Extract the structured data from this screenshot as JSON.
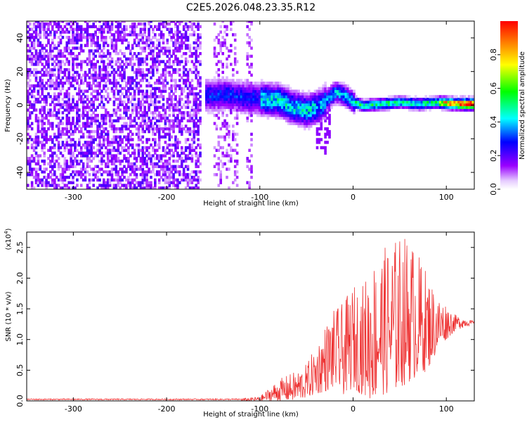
{
  "figure_title": "C2E5.2026.048.23.35.R12",
  "chart_data": [
    {
      "type": "heatmap",
      "title": "C2E5.2026.048.23.35.R12",
      "xlabel": "Height of straight line (km)",
      "ylabel": "Frequency (Hz)",
      "xlim": [
        -350,
        130
      ],
      "ylim": [
        -50,
        50
      ],
      "xticks": [
        -300,
        -200,
        -100,
        0,
        100
      ],
      "xtick_labels": [
        "-300",
        "-200",
        "-100",
        "0",
        "100"
      ],
      "yticks": [
        -40,
        -20,
        0,
        20,
        40
      ],
      "ytick_labels": [
        "-40",
        "-20",
        "0",
        "20",
        "40"
      ],
      "colorbar": {
        "label": "Normalized spectral amplitude",
        "range": [
          0,
          1
        ],
        "ticks": [
          0.0,
          0.2,
          0.4,
          0.6,
          0.8
        ],
        "tick_labels": [
          "0.0",
          "0.2",
          "0.4",
          "0.6",
          "0.8"
        ],
        "colormap": [
          "#ffffff",
          "#9900ff",
          "#0000ff",
          "#00ffff",
          "#00ff00",
          "#ffff00",
          "#ff8000",
          "#ff0000"
        ]
      },
      "ridge": {
        "description_of_values": "frequency ridge center (Hz) vs height (km)",
        "x": [
          -155,
          -140,
          -120,
          -100,
          -80,
          -65,
          -50,
          -35,
          -25,
          -18,
          -10,
          0,
          10,
          30,
          50,
          70,
          90,
          110,
          130
        ],
        "y": [
          5,
          6,
          4,
          3,
          2,
          -2,
          -4,
          -1,
          5,
          7,
          5,
          1,
          -1,
          0,
          1,
          0,
          1,
          0,
          0
        ]
      },
      "noise_region_x": [
        -350,
        -110
      ]
    },
    {
      "type": "line",
      "xlabel": "Height of straight line (km)",
      "ylabel": "SNR (10 * v/v)",
      "y_multiplier_label": "(x10",
      "y_multiplier_exponent": "4",
      "xlim": [
        -350,
        130
      ],
      "ylim": [
        0,
        2.75
      ],
      "xticks": [
        -300,
        -200,
        -100,
        0,
        100
      ],
      "xtick_labels": [
        "-300",
        "-200",
        "-100",
        "0",
        "100"
      ],
      "yticks": [
        0.0,
        0.5,
        1.0,
        1.5,
        2.0,
        2.5
      ],
      "ytick_labels": [
        "0.0",
        "0.5",
        "1.0",
        "1.5",
        "2.0",
        "2.5"
      ],
      "series": [
        {
          "name": "SNR",
          "color": "#ee3333",
          "envelope_x": [
            -350,
            -120,
            -100,
            -80,
            -60,
            -50,
            -40,
            -30,
            -20,
            -10,
            0,
            10,
            20,
            30,
            40,
            50,
            60,
            70,
            80,
            90,
            100,
            110,
            120,
            130
          ],
          "envelope_hi": [
            0.03,
            0.04,
            0.07,
            0.35,
            0.5,
            0.6,
            0.9,
            1.25,
            1.5,
            1.6,
            1.9,
            1.9,
            2.3,
            2.45,
            2.6,
            2.7,
            2.72,
            2.4,
            2.1,
            1.75,
            1.6,
            1.4,
            1.35,
            1.3
          ],
          "envelope_lo": [
            0.0,
            0.0,
            0.0,
            0.0,
            0.0,
            0.05,
            0.1,
            0.15,
            0.2,
            0.1,
            0.2,
            0.1,
            0.0,
            0.1,
            0.1,
            0.2,
            0.3,
            0.4,
            0.5,
            0.8,
            1.0,
            1.15,
            1.2,
            1.25
          ]
        }
      ]
    }
  ]
}
